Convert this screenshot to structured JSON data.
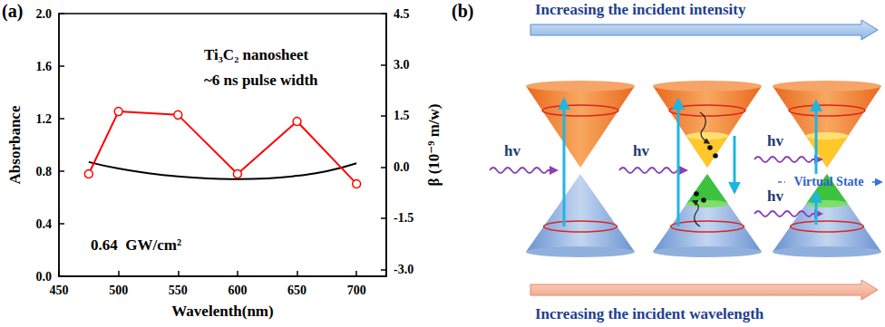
{
  "chart_data": {
    "type": "line",
    "xlabel": "Wavelenth(nm)",
    "ylabel": "Absorbance",
    "y2label": "β (10⁻⁹ m/w)",
    "annotations": [
      "(a)",
      "Ti₃C₂ nanosheet",
      "~6 ns pulse width",
      "0.64  GW/cm²"
    ],
    "xlim": [
      450,
      725
    ],
    "xticks": [
      450,
      500,
      550,
      600,
      650,
      700
    ],
    "ylim": [
      0,
      2
    ],
    "yticks": [
      {
        "value": 0,
        "label": "0.0"
      },
      0.4,
      0.8,
      1.2,
      1.6,
      {
        "value": 2,
        "label": "2.0"
      }
    ],
    "y2lim": [
      -3.2,
      4.5
    ],
    "y2ticks": [
      {
        "value": -3,
        "label": "-3.0"
      },
      -1.5,
      {
        "value": 0,
        "label": "0.0"
      },
      1.5,
      {
        "value": 3,
        "label": "3.0"
      },
      4.5
    ],
    "grid": false,
    "series": [
      {
        "color": "#000000",
        "marker": "none",
        "line_style": "solid",
        "x": [
          475,
          500,
          525,
          550,
          575,
          600,
          625,
          650,
          675,
          700
        ],
        "values": [
          0.87,
          0.82,
          0.785,
          0.76,
          0.745,
          0.74,
          0.745,
          0.765,
          0.8,
          0.86
        ]
      },
      {
        "color": "#ff0000",
        "marker": "open circle",
        "line_style": "solid",
        "axis": "y2",
        "x": [
          475,
          500,
          550,
          600,
          650,
          700
        ],
        "values": [
          -0.2,
          1.63,
          1.53,
          -0.2,
          1.34,
          -0.49
        ]
      }
    ]
  },
  "diagram": {
    "panel_label": "(b)",
    "top_arrow_label": "Increasing the incident intensity",
    "bottom_arrow_label": "Increasing the incident wavelength",
    "photon_labels": [
      "hv",
      "hv",
      "hv",
      "hv"
    ],
    "virtual_state_label": "Virtual State"
  }
}
